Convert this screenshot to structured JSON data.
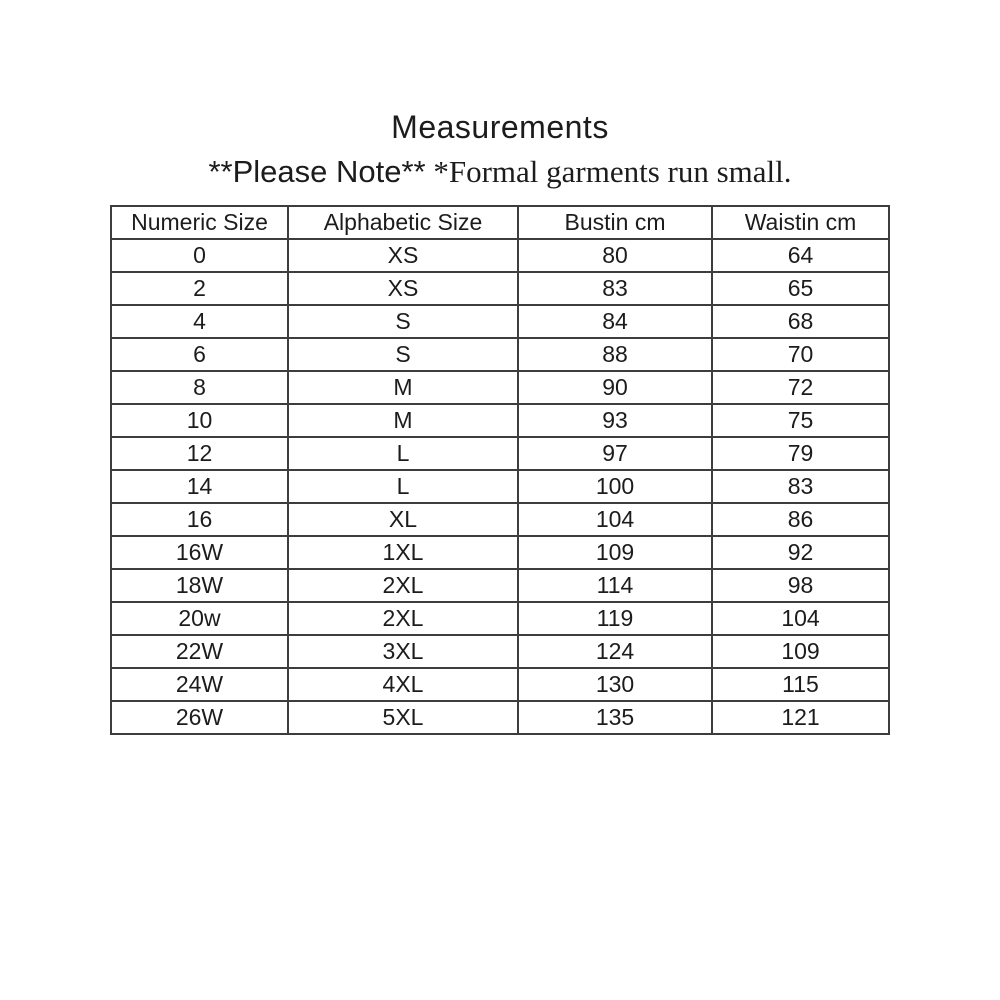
{
  "page": {
    "title": "Measurements",
    "note_sans": "**Please Note**",
    "note_serif": " *Formal garments run small."
  },
  "table": {
    "headers": [
      "Numeric Size",
      "Alphabetic Size",
      "Bustin cm",
      "Waistin cm"
    ],
    "rows": [
      [
        "0",
        "XS",
        "80",
        "64"
      ],
      [
        "2",
        "XS",
        "83",
        "65"
      ],
      [
        "4",
        "S",
        "84",
        "68"
      ],
      [
        "6",
        "S",
        "88",
        "70"
      ],
      [
        "8",
        "M",
        "90",
        "72"
      ],
      [
        "10",
        "M",
        "93",
        "75"
      ],
      [
        "12",
        "L",
        "97",
        "79"
      ],
      [
        "14",
        "L",
        "100",
        "83"
      ],
      [
        "16",
        "XL",
        "104",
        "86"
      ],
      [
        "16W",
        "1XL",
        "109",
        "92"
      ],
      [
        "18W",
        "2XL",
        "114",
        "98"
      ],
      [
        "20w",
        "2XL",
        "119",
        "104"
      ],
      [
        "22W",
        "3XL",
        "124",
        "109"
      ],
      [
        "24W",
        "4XL",
        "130",
        "115"
      ],
      [
        "26W",
        "5XL",
        "135",
        "121"
      ]
    ]
  },
  "colors": {
    "text": "#1c1c1c",
    "border": "#3d3d3d",
    "background": "#ffffff"
  }
}
